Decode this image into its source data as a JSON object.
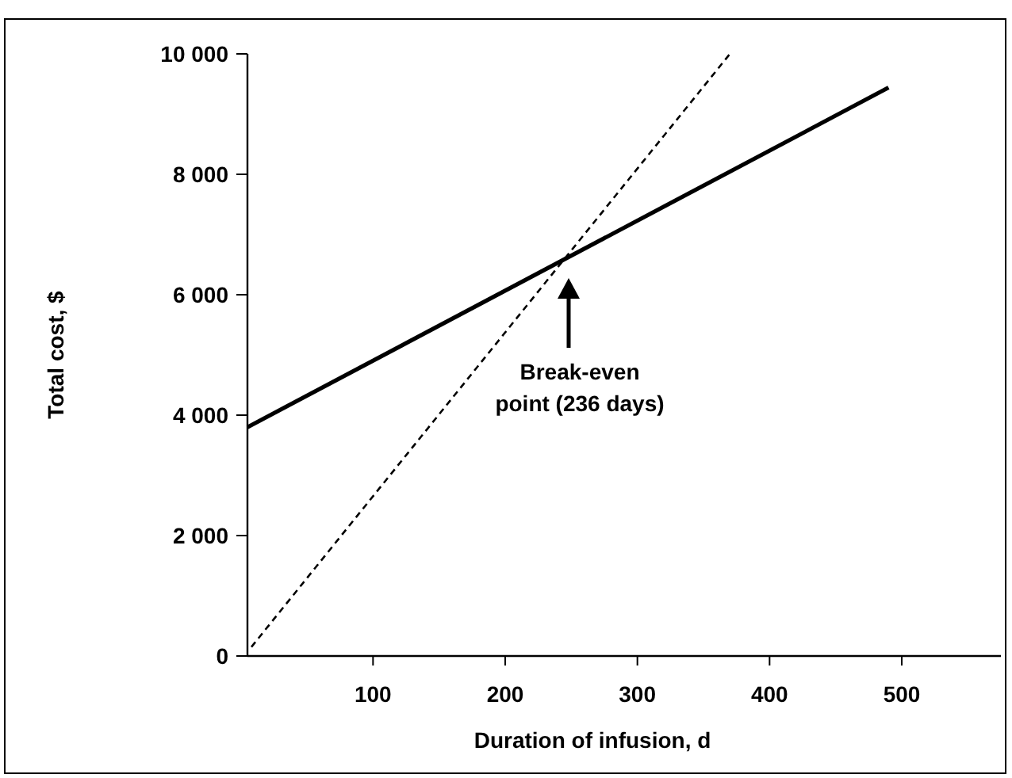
{
  "chart_data": {
    "type": "line",
    "xlabel": "Duration of infusion, d",
    "ylabel": "Total cost, $",
    "xlim": [
      5,
      575
    ],
    "ylim": [
      0,
      10000
    ],
    "xticks": [
      100,
      200,
      300,
      400,
      500
    ],
    "yticks": [
      {
        "value": 0,
        "label": "0"
      },
      {
        "value": 2000,
        "label": "2 000"
      },
      {
        "value": 4000,
        "label": "4 000"
      },
      {
        "value": 6000,
        "label": "6 000"
      },
      {
        "value": 8000,
        "label": "8 000"
      },
      {
        "value": 10000,
        "label": "10 000"
      }
    ],
    "series": [
      {
        "color": "#000000",
        "line_style": "solid",
        "x": [
          5,
          490
        ],
        "values": [
          3800,
          9440
        ]
      },
      {
        "color": "#000000",
        "line_style": "dashed",
        "x": [
          8,
          370
        ],
        "values": [
          150,
          10000
        ]
      }
    ],
    "annotations": [
      "Break-even point (236 days)"
    ]
  }
}
